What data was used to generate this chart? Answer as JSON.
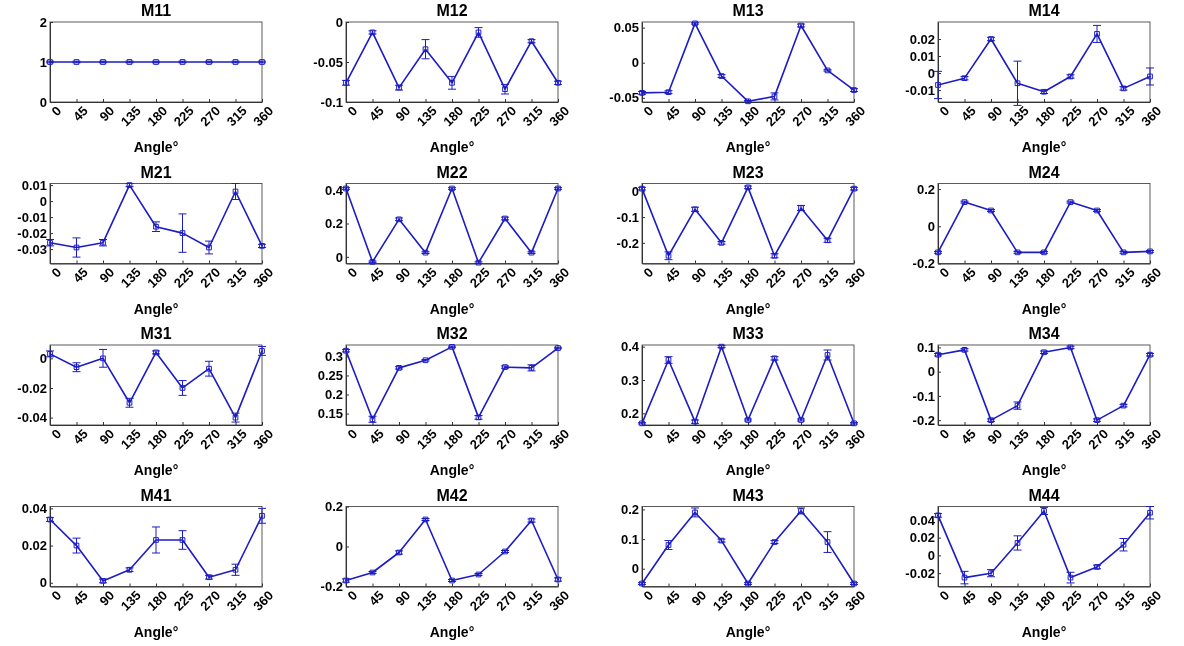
{
  "chart_data": [
    {
      "type": "line",
      "title": "M11",
      "xlabel": "Angle°",
      "x": [
        0,
        45,
        90,
        135,
        180,
        225,
        270,
        315,
        360
      ],
      "xlim": [
        0,
        360
      ],
      "xticks": [
        0,
        45,
        90,
        135,
        180,
        225,
        270,
        315,
        360
      ],
      "ylim": [
        0,
        2
      ],
      "yticks": [
        0,
        1,
        2
      ],
      "color": "#1c1cc4",
      "marker": "square",
      "values": [
        1,
        1,
        1,
        1,
        1,
        1,
        1,
        1,
        1
      ],
      "errors": [
        0.02,
        0.02,
        0.02,
        0.02,
        0.02,
        0.02,
        0.02,
        0.02,
        0.02
      ]
    },
    {
      "type": "line",
      "title": "M12",
      "xlabel": "Angle°",
      "x": [
        0,
        45,
        90,
        135,
        180,
        225,
        270,
        315,
        360
      ],
      "xlim": [
        0,
        360
      ],
      "xticks": [
        0,
        45,
        90,
        135,
        180,
        225,
        270,
        315,
        360
      ],
      "ylim": [
        -0.1,
        0
      ],
      "yticks": [
        -0.1,
        -0.05,
        0
      ],
      "color": "#1c1cc4",
      "marker": "square",
      "values": [
        -0.076,
        -0.013,
        -0.082,
        -0.034,
        -0.076,
        -0.013,
        -0.084,
        -0.024,
        -0.076
      ],
      "errors": [
        0.003,
        0.002,
        0.003,
        0.012,
        0.008,
        0.006,
        0.006,
        0.002,
        0.002
      ]
    },
    {
      "type": "line",
      "title": "M13",
      "xlabel": "Angle°",
      "x": [
        0,
        45,
        90,
        135,
        180,
        225,
        270,
        315,
        360
      ],
      "xlim": [
        0,
        360
      ],
      "xticks": [
        0,
        45,
        90,
        135,
        180,
        225,
        270,
        315,
        360
      ],
      "ylim": [
        -0.056,
        0.058
      ],
      "yticks": [
        -0.05,
        0,
        0.05
      ],
      "color": "#1c1cc4",
      "marker": "square",
      "values": [
        -0.043,
        -0.042,
        0.056,
        -0.019,
        -0.055,
        -0.048,
        0.053,
        -0.011,
        -0.039
      ],
      "errors": [
        0.002,
        0.002,
        0.001,
        0.002,
        0.001,
        0.005,
        0.002,
        0.001,
        0.002
      ]
    },
    {
      "type": "line",
      "title": "M14",
      "xlabel": "Angle°",
      "x": [
        0,
        45,
        90,
        135,
        180,
        225,
        270,
        315,
        360
      ],
      "xlim": [
        0,
        360
      ],
      "xticks": [
        0,
        45,
        90,
        135,
        180,
        225,
        270,
        315,
        360
      ],
      "ylim": [
        -0.017,
        0.03
      ],
      "yticks": [
        -0.01,
        0,
        0.01,
        0.02
      ],
      "color": "#1c1cc4",
      "marker": "square",
      "values": [
        -0.007,
        -0.003,
        0.02,
        -0.006,
        -0.011,
        -0.002,
        0.023,
        -0.009,
        -0.002
      ],
      "errors": [
        0.008,
        0.001,
        0.001,
        0.013,
        0.001,
        0.001,
        0.005,
        0.001,
        0.005
      ]
    },
    {
      "type": "line",
      "title": "M21",
      "xlabel": "Angle°",
      "x": [
        0,
        45,
        90,
        135,
        180,
        225,
        270,
        315,
        360
      ],
      "xlim": [
        0,
        360
      ],
      "xticks": [
        0,
        45,
        90,
        135,
        180,
        225,
        270,
        315,
        360
      ],
      "ylim": [
        -0.039,
        0.011
      ],
      "yticks": [
        -0.03,
        -0.02,
        -0.01,
        0,
        0.01
      ],
      "color": "#1c1cc4",
      "marker": "square",
      "values": [
        -0.026,
        -0.029,
        -0.026,
        0.01,
        -0.016,
        -0.02,
        -0.029,
        0.006,
        -0.028
      ],
      "errors": [
        0.002,
        0.006,
        0.002,
        0.001,
        0.003,
        0.012,
        0.004,
        0.005,
        0.001
      ]
    },
    {
      "type": "line",
      "title": "M22",
      "xlabel": "Angle°",
      "x": [
        0,
        45,
        90,
        135,
        180,
        225,
        270,
        315,
        360
      ],
      "xlim": [
        0,
        360
      ],
      "xticks": [
        0,
        45,
        90,
        135,
        180,
        225,
        270,
        315,
        360
      ],
      "ylim": [
        -0.04,
        0.44
      ],
      "yticks": [
        0,
        0.2,
        0.4
      ],
      "color": "#1c1cc4",
      "marker": "square",
      "values": [
        0.41,
        -0.03,
        0.225,
        0.025,
        0.41,
        -0.035,
        0.23,
        0.025,
        0.41
      ],
      "errors": [
        0.005,
        0.005,
        0.008,
        0.005,
        0.005,
        0.005,
        0.008,
        0.005,
        0.005
      ]
    },
    {
      "type": "line",
      "title": "M23",
      "xlabel": "Angle°",
      "x": [
        0,
        45,
        90,
        135,
        180,
        225,
        270,
        315,
        360
      ],
      "xlim": [
        0,
        360
      ],
      "xticks": [
        0,
        45,
        90,
        135,
        180,
        225,
        270,
        315,
        360
      ],
      "ylim": [
        -0.28,
        0.03
      ],
      "yticks": [
        -0.2,
        -0.1,
        0
      ],
      "color": "#1c1cc4",
      "marker": "square",
      "values": [
        0.01,
        -0.25,
        -0.07,
        -0.2,
        0.015,
        -0.25,
        -0.065,
        -0.19,
        0.01
      ],
      "errors": [
        0.005,
        0.015,
        0.008,
        0.005,
        0.005,
        0.008,
        0.01,
        0.008,
        0.005
      ]
    },
    {
      "type": "line",
      "title": "M24",
      "xlabel": "Angle°",
      "x": [
        0,
        45,
        90,
        135,
        180,
        225,
        270,
        315,
        360
      ],
      "xlim": [
        0,
        360
      ],
      "xticks": [
        0,
        45,
        90,
        135,
        180,
        225,
        270,
        315,
        360
      ],
      "ylim": [
        -0.2,
        0.23
      ],
      "yticks": [
        -0.2,
        0,
        0.2
      ],
      "color": "#1c1cc4",
      "marker": "square",
      "values": [
        -0.14,
        0.13,
        0.085,
        -0.14,
        -0.14,
        0.13,
        0.085,
        -0.14,
        -0.135
      ],
      "errors": [
        0.005,
        0.005,
        0.005,
        0.005,
        0.005,
        0.005,
        0.005,
        0.005,
        0.005
      ]
    },
    {
      "type": "line",
      "title": "M31",
      "xlabel": "Angle°",
      "x": [
        0,
        45,
        90,
        135,
        180,
        225,
        270,
        315,
        360
      ],
      "xlim": [
        0,
        360
      ],
      "xticks": [
        0,
        45,
        90,
        135,
        180,
        225,
        270,
        315,
        360
      ],
      "ylim": [
        -0.045,
        0.009
      ],
      "yticks": [
        -0.04,
        -0.02,
        0
      ],
      "color": "#1c1cc4",
      "marker": "square",
      "values": [
        0.003,
        -0.006,
        0,
        -0.03,
        0.004,
        -0.02,
        -0.007,
        -0.04,
        0.005
      ],
      "errors": [
        0.002,
        0.003,
        0.006,
        0.003,
        0.001,
        0.005,
        0.005,
        0.003,
        0.003
      ]
    },
    {
      "type": "line",
      "title": "M32",
      "xlabel": "Angle°",
      "x": [
        0,
        45,
        90,
        135,
        180,
        225,
        270,
        315,
        360
      ],
      "xlim": [
        0,
        360
      ],
      "xticks": [
        0,
        45,
        90,
        135,
        180,
        225,
        270,
        315,
        360
      ],
      "ylim": [
        0.12,
        0.33
      ],
      "yticks": [
        0.15,
        0.2,
        0.25,
        0.3
      ],
      "color": "#1c1cc4",
      "marker": "square",
      "values": [
        0.315,
        0.135,
        0.27,
        0.29,
        0.325,
        0.14,
        0.272,
        0.27,
        0.322
      ],
      "errors": [
        0.003,
        0.008,
        0.003,
        0.002,
        0.002,
        0.005,
        0.003,
        0.008,
        0.002
      ]
    },
    {
      "type": "line",
      "title": "M33",
      "xlabel": "Angle°",
      "x": [
        0,
        45,
        90,
        135,
        180,
        225,
        270,
        315,
        360
      ],
      "xlim": [
        0,
        360
      ],
      "xticks": [
        0,
        45,
        90,
        135,
        180,
        225,
        270,
        315,
        360
      ],
      "ylim": [
        0.165,
        0.405
      ],
      "yticks": [
        0.2,
        0.3,
        0.4
      ],
      "color": "#1c1cc4",
      "marker": "square",
      "values": [
        0.17,
        0.36,
        0.175,
        0.4,
        0.18,
        0.365,
        0.18,
        0.375,
        0.17
      ],
      "errors": [
        0.002,
        0.01,
        0.005,
        0.003,
        0.003,
        0.005,
        0.003,
        0.015,
        0.002
      ]
    },
    {
      "type": "line",
      "title": "M34",
      "xlabel": "Angle°",
      "x": [
        0,
        45,
        90,
        135,
        180,
        225,
        270,
        315,
        360
      ],
      "xlim": [
        0,
        360
      ],
      "xticks": [
        0,
        45,
        90,
        135,
        180,
        225,
        270,
        315,
        360
      ],
      "ylim": [
        -0.22,
        0.11
      ],
      "yticks": [
        -0.2,
        -0.1,
        0,
        0.1
      ],
      "color": "#1c1cc4",
      "marker": "square",
      "values": [
        0.07,
        0.09,
        -0.2,
        -0.14,
        0.08,
        0.1,
        -0.2,
        -0.14,
        0.07
      ],
      "errors": [
        0.005,
        0.005,
        0.005,
        0.015,
        0.005,
        0.005,
        0.005,
        0.005,
        0.005
      ]
    },
    {
      "type": "line",
      "title": "M41",
      "xlabel": "Angle°",
      "x": [
        0,
        45,
        90,
        135,
        180,
        225,
        270,
        315,
        360
      ],
      "xlim": [
        0,
        360
      ],
      "xticks": [
        0,
        45,
        90,
        135,
        180,
        225,
        270,
        315,
        360
      ],
      "ylim": [
        -0.002,
        0.041
      ],
      "yticks": [
        0,
        0.02,
        0.04
      ],
      "color": "#1c1cc4",
      "marker": "square",
      "values": [
        0.034,
        0.02,
        0.001,
        0.007,
        0.023,
        0.023,
        0.003,
        0.007,
        0.036
      ],
      "errors": [
        0.001,
        0.004,
        0.001,
        0.001,
        0.007,
        0.005,
        0.001,
        0.003,
        0.004
      ]
    },
    {
      "type": "line",
      "title": "M42",
      "xlabel": "Angle°",
      "x": [
        0,
        45,
        90,
        135,
        180,
        225,
        270,
        315,
        360
      ],
      "xlim": [
        0,
        360
      ],
      "xticks": [
        0,
        45,
        90,
        135,
        180,
        225,
        270,
        315,
        360
      ],
      "ylim": [
        -0.2,
        0.2
      ],
      "yticks": [
        -0.2,
        0,
        0.2
      ],
      "color": "#1c1cc4",
      "marker": "square",
      "values": [
        -0.17,
        -0.13,
        -0.03,
        0.135,
        -0.17,
        -0.14,
        -0.025,
        0.13,
        -0.165
      ],
      "errors": [
        0.008,
        0.005,
        0.008,
        0.005,
        0.005,
        0.005,
        0.005,
        0.008,
        0.008
      ]
    },
    {
      "type": "line",
      "title": "M43",
      "xlabel": "Angle°",
      "x": [
        0,
        45,
        90,
        135,
        180,
        225,
        270,
        315,
        360
      ],
      "xlim": [
        0,
        360
      ],
      "xticks": [
        0,
        45,
        90,
        135,
        180,
        225,
        270,
        315,
        360
      ],
      "ylim": [
        -0.06,
        0.21
      ],
      "yticks": [
        0,
        0.1,
        0.2
      ],
      "color": "#1c1cc4",
      "marker": "square",
      "values": [
        -0.05,
        0.08,
        0.19,
        0.095,
        -0.05,
        0.09,
        0.195,
        0.09,
        -0.05
      ],
      "errors": [
        0.003,
        0.015,
        0.015,
        0.005,
        0.003,
        0.005,
        0.01,
        0.035,
        0.003
      ]
    },
    {
      "type": "line",
      "title": "M44",
      "xlabel": "Angle°",
      "x": [
        0,
        45,
        90,
        135,
        180,
        225,
        270,
        315,
        360
      ],
      "xlim": [
        0,
        360
      ],
      "xticks": [
        0,
        45,
        90,
        135,
        180,
        225,
        270,
        315,
        360
      ],
      "ylim": [
        -0.035,
        0.055
      ],
      "yticks": [
        -0.02,
        0,
        0.02,
        0.04
      ],
      "color": "#1c1cc4",
      "marker": "square",
      "values": [
        0.045,
        -0.025,
        -0.02,
        0.014,
        0.05,
        -0.025,
        -0.013,
        0.012,
        0.048
      ],
      "errors": [
        0.002,
        0.007,
        0.004,
        0.008,
        0.004,
        0.006,
        0.002,
        0.007,
        0.007
      ]
    }
  ]
}
